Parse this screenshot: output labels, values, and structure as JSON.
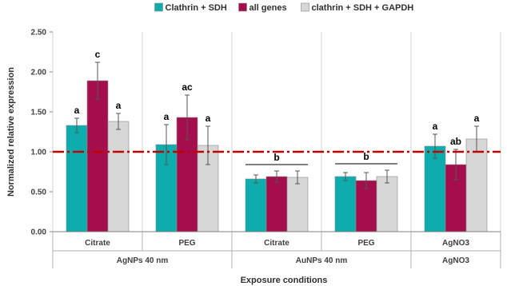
{
  "chart_data": {
    "type": "bar",
    "title": "",
    "xlabel": "Exposure conditions",
    "ylabel": "Normalized relative expression",
    "ylim": [
      0,
      2.5
    ],
    "yticks": [
      "0.00",
      "0.50",
      "1.00",
      "1.50",
      "2.00",
      "2.50"
    ],
    "grid": false,
    "legend_position": "top",
    "reference_line": {
      "y": 1.0,
      "color": "#c00000",
      "style": "dash-dot"
    },
    "categories": [
      "Citrate",
      "PEG",
      "Citrate",
      "PEG",
      "AgNO3"
    ],
    "groups": [
      {
        "label": "AgNPs 40 nm",
        "categories": [
          0,
          1
        ]
      },
      {
        "label": "AuNPs 40 nm",
        "categories": [
          2,
          3
        ]
      },
      {
        "label": "AgNO3",
        "categories": [
          4
        ]
      }
    ],
    "series": [
      {
        "name": "Clathrin + SDH",
        "color": "#0eadad",
        "values": [
          1.33,
          1.09,
          0.66,
          0.69,
          1.07
        ],
        "errors": [
          0.09,
          0.25,
          0.05,
          0.05,
          0.15
        ]
      },
      {
        "name": "all genes",
        "color": "#a50e4d",
        "values": [
          1.89,
          1.43,
          0.69,
          0.64,
          0.84
        ],
        "errors": [
          0.23,
          0.28,
          0.07,
          0.1,
          0.19
        ]
      },
      {
        "name": "clathrin + SDH + GAPDH",
        "color": "#d7d7d7",
        "values": [
          1.38,
          1.08,
          0.68,
          0.69,
          1.16
        ],
        "errors": [
          0.1,
          0.24,
          0.08,
          0.08,
          0.16
        ]
      }
    ],
    "significance": [
      {
        "category": 0,
        "labels": [
          "a",
          "c",
          "a"
        ]
      },
      {
        "category": 1,
        "labels": [
          "a",
          "ac",
          "a"
        ]
      },
      {
        "category": 2,
        "labels": [
          "b"
        ],
        "bracket": true
      },
      {
        "category": 3,
        "labels": [
          "b"
        ],
        "bracket": true
      },
      {
        "category": 4,
        "labels": [
          "a",
          "ab",
          "a"
        ]
      }
    ]
  }
}
